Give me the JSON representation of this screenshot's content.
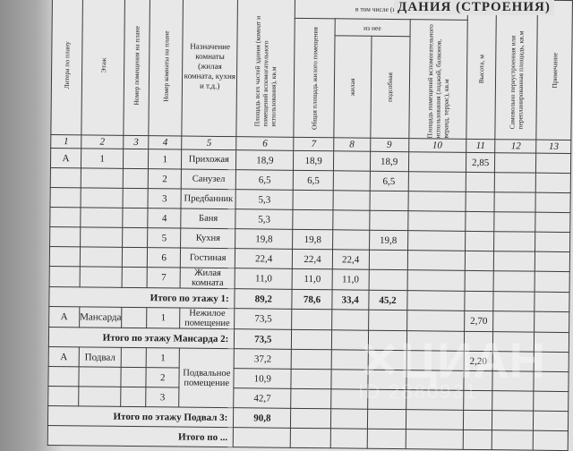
{
  "document_title": "ДАНИЯ (СТРОЕНИЯ)",
  "header": {
    "col1": "Литера по плану",
    "col2": "Этаж",
    "col3": "Номер помещения на плане",
    "col4": "Номер комнаты на плане",
    "col5": "Назначение комнаты (жилая комната, кухня и т.д.)",
    "col6": "Площадь всех частей здания (комнат и помещений вспомогательного использования), кв.м",
    "group": "в том числе (кв.м)",
    "col7": "Общая площадь жилого помещения",
    "subgroup": "из нее",
    "col8": "жилая",
    "col9": "подсобная",
    "col10": "Площадь помещений вспомогательного использования (лоджий, балконов, веранд, террас), кв.м",
    "col11": "Высота, м",
    "col12": "Самовольно переустроенная или перепланированная площадь, кв.м",
    "col13": "Примечание",
    "numbers": [
      "1",
      "2",
      "3",
      "4",
      "5",
      "6",
      "7",
      "8",
      "9",
      "10",
      "11",
      "12",
      "13"
    ]
  },
  "rows": [
    {
      "lit": "А",
      "floor": "1",
      "pom": "",
      "room": "1",
      "name": "Прихожая",
      "c6": "18,9",
      "c7": "18,9",
      "c8": "",
      "c9": "18,9",
      "c10": "",
      "c11": "2,85"
    },
    {
      "lit": "",
      "floor": "",
      "pom": "",
      "room": "2",
      "name": "Санузел",
      "c6": "6,5",
      "c7": "6,5",
      "c8": "",
      "c9": "6,5",
      "c10": "",
      "c11": ""
    },
    {
      "lit": "",
      "floor": "",
      "pom": "",
      "room": "3",
      "name": "Предбанник",
      "c6": "5,3",
      "c7": "",
      "c8": "",
      "c9": "",
      "c10": "",
      "c11": ""
    },
    {
      "lit": "",
      "floor": "",
      "pom": "",
      "room": "4",
      "name": "Баня",
      "c6": "5,3",
      "c7": "",
      "c8": "",
      "c9": "",
      "c10": "",
      "c11": ""
    },
    {
      "lit": "",
      "floor": "",
      "pom": "",
      "room": "5",
      "name": "Кухня",
      "c6": "19,8",
      "c7": "19,8",
      "c8": "",
      "c9": "19,8",
      "c10": "",
      "c11": ""
    },
    {
      "lit": "",
      "floor": "",
      "pom": "",
      "room": "6",
      "name": "Гостиная",
      "c6": "22,4",
      "c7": "22,4",
      "c8": "22,4",
      "c9": "",
      "c10": "",
      "c11": ""
    },
    {
      "lit": "",
      "floor": "",
      "pom": "",
      "room": "7",
      "name": "Жилая комната",
      "c6": "11,0",
      "c7": "11,0",
      "c8": "11,0",
      "c9": "",
      "c10": "",
      "c11": ""
    },
    {
      "total": "Итого по этажу 1:",
      "c6": "89,2",
      "c7": "78,6",
      "c8": "33,4",
      "c9": "45,2"
    },
    {
      "lit": "А",
      "floor": "Мансарда",
      "pom": "",
      "room": "1",
      "name": "Нежилое помещение",
      "c6": "73,5",
      "c7": "",
      "c8": "",
      "c9": "",
      "c10": "",
      "c11": "2,70"
    },
    {
      "total": "Итого по этажу Мансарда 2:",
      "c6": "73,5",
      "c7": "",
      "c8": "",
      "c9": ""
    },
    {
      "lit": "А",
      "floor": "Подвал",
      "pom": "",
      "room": "1",
      "name": "Подвальное помещение",
      "nameSpan": 3,
      "c6": "37,2",
      "c7": "",
      "c8": "",
      "c9": "",
      "c10": "",
      "c11": "2,20"
    },
    {
      "lit": "",
      "floor": "",
      "pom": "",
      "room": "2",
      "skipName": true,
      "c6": "10,9",
      "c7": "",
      "c8": "",
      "c9": "",
      "c10": "",
      "c11": ""
    },
    {
      "lit": "",
      "floor": "",
      "pom": "",
      "room": "3",
      "skipName": true,
      "c6": "42,7",
      "c7": "",
      "c8": "",
      "c9": "",
      "c10": "",
      "c11": ""
    },
    {
      "total": "Итого по этажу Подвал 3:",
      "c6": "90,8",
      "c7": "",
      "c8": "",
      "c9": ""
    },
    {
      "total": "Итого по ...",
      "c6": "",
      "c7": "",
      "c8": "",
      "c9": ""
    }
  ],
  "watermark": {
    "brand": "ЦИАН",
    "id": "ID 2880931"
  }
}
